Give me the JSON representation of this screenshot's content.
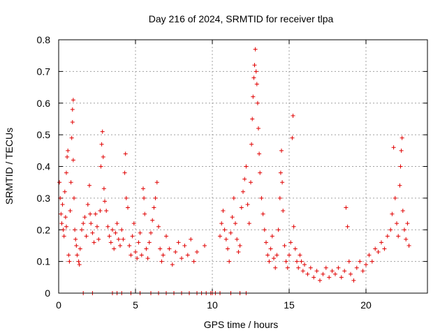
{
  "chart_data": {
    "type": "scatter",
    "title": "Day 216 of 2024, SRMTID for receiver tlpa",
    "xlabel": "GPS time / hours",
    "ylabel": "SRMTID / TECUs",
    "xlim": [
      0,
      24
    ],
    "ylim": [
      0,
      0.8
    ],
    "xticks": [
      0,
      5,
      10,
      15,
      20
    ],
    "yticks": [
      0,
      0.1,
      0.2,
      0.3,
      0.4,
      0.5,
      0.6,
      0.7,
      0.8
    ],
    "xtick_labels": [
      "0",
      "5",
      "10",
      "15",
      "20"
    ],
    "ytick_labels": [
      "0",
      "0.1",
      "0.2",
      "0.3",
      "0.4",
      "0.5",
      "0.6",
      "0.7",
      "0.8"
    ],
    "grid": true,
    "marker": "+",
    "color": "#e00000",
    "series": [
      {
        "name": "SRMTID",
        "points": [
          [
            0.05,
            0.35
          ],
          [
            0.1,
            0.3
          ],
          [
            0.15,
            0.25
          ],
          [
            0.2,
            0.22
          ],
          [
            0.25,
            0.28
          ],
          [
            0.3,
            0.2
          ],
          [
            0.35,
            0.18
          ],
          [
            0.4,
            0.32
          ],
          [
            0.45,
            0.24
          ],
          [
            0.5,
            0.21
          ],
          [
            0.5,
            0.38
          ],
          [
            0.55,
            0.43
          ],
          [
            0.6,
            0.45
          ],
          [
            0.65,
            0.12
          ],
          [
            0.7,
            0.1
          ],
          [
            0.75,
            0.26
          ],
          [
            0.8,
            0.35
          ],
          [
            0.85,
            0.49
          ],
          [
            0.9,
            0.58
          ],
          [
            0.95,
            0.61
          ],
          [
            0.9,
            0.54
          ],
          [
            0.95,
            0.42
          ],
          [
            1.0,
            0.3
          ],
          [
            1.05,
            0.2
          ],
          [
            1.1,
            0.17
          ],
          [
            1.15,
            0.15
          ],
          [
            1.2,
            0.12
          ],
          [
            1.3,
            0.1
          ],
          [
            1.35,
            0.09
          ],
          [
            1.4,
            0.14
          ],
          [
            1.5,
            0.2
          ],
          [
            1.6,
            0.22
          ],
          [
            1.7,
            0.24
          ],
          [
            1.8,
            0.18
          ],
          [
            1.9,
            0.28
          ],
          [
            2.0,
            0.34
          ],
          [
            2.05,
            0.25
          ],
          [
            2.1,
            0.22
          ],
          [
            2.2,
            0.19
          ],
          [
            2.3,
            0.16
          ],
          [
            2.4,
            0.25
          ],
          [
            2.5,
            0.21
          ],
          [
            2.6,
            0.17
          ],
          [
            2.7,
            0.26
          ],
          [
            2.75,
            0.4
          ],
          [
            2.8,
            0.47
          ],
          [
            2.85,
            0.51
          ],
          [
            2.9,
            0.43
          ],
          [
            2.95,
            0.33
          ],
          [
            3.0,
            0.29
          ],
          [
            3.1,
            0.26
          ],
          [
            3.2,
            0.21
          ],
          [
            3.3,
            0.18
          ],
          [
            3.4,
            0.16
          ],
          [
            3.5,
            0.2
          ],
          [
            3.6,
            0.14
          ],
          [
            3.7,
            0.19
          ],
          [
            3.8,
            0.22
          ],
          [
            3.9,
            0.17
          ],
          [
            4.0,
            0.15
          ],
          [
            4.1,
            0.2
          ],
          [
            4.2,
            0.17
          ],
          [
            4.3,
            0.38
          ],
          [
            4.35,
            0.44
          ],
          [
            4.4,
            0.3
          ],
          [
            4.5,
            0.27
          ],
          [
            4.6,
            0.15
          ],
          [
            4.7,
            0.12
          ],
          [
            4.8,
            0.18
          ],
          [
            4.9,
            0.22
          ],
          [
            5.0,
            0.13
          ],
          [
            5.1,
            0.11
          ],
          [
            5.2,
            0.16
          ],
          [
            5.3,
            0.19
          ],
          [
            5.4,
            0.12
          ],
          [
            5.5,
            0.33
          ],
          [
            5.55,
            0.3
          ],
          [
            5.6,
            0.25
          ],
          [
            5.7,
            0.14
          ],
          [
            5.8,
            0.11
          ],
          [
            5.9,
            0.16
          ],
          [
            6.0,
            0.19
          ],
          [
            6.1,
            0.23
          ],
          [
            6.2,
            0.27
          ],
          [
            6.3,
            0.3
          ],
          [
            6.4,
            0.35
          ],
          [
            6.5,
            0.21
          ],
          [
            6.6,
            0.14
          ],
          [
            6.7,
            0.1
          ],
          [
            6.8,
            0.12
          ],
          [
            7.0,
            0.18
          ],
          [
            7.2,
            0.14
          ],
          [
            7.4,
            0.09
          ],
          [
            7.6,
            0.13
          ],
          [
            7.8,
            0.16
          ],
          [
            8.0,
            0.11
          ],
          [
            8.2,
            0.15
          ],
          [
            8.4,
            0.12
          ],
          [
            8.6,
            0.17
          ],
          [
            8.8,
            0.1
          ],
          [
            9.0,
            0.13
          ],
          [
            9.5,
            0.15
          ],
          [
            10.0,
            0.0
          ],
          [
            10.5,
            0.18
          ],
          [
            10.6,
            0.22
          ],
          [
            10.7,
            0.26
          ],
          [
            10.8,
            0.2
          ],
          [
            10.9,
            0.17
          ],
          [
            11.0,
            0.14
          ],
          [
            11.1,
            0.1
          ],
          [
            11.2,
            0.19
          ],
          [
            11.3,
            0.24
          ],
          [
            11.4,
            0.3
          ],
          [
            11.5,
            0.22
          ],
          [
            11.6,
            0.17
          ],
          [
            11.7,
            0.13
          ],
          [
            11.8,
            0.15
          ],
          [
            11.9,
            0.27
          ],
          [
            12.0,
            0.32
          ],
          [
            12.1,
            0.36
          ],
          [
            12.2,
            0.4
          ],
          [
            12.3,
            0.28
          ],
          [
            12.4,
            0.22
          ],
          [
            12.5,
            0.35
          ],
          [
            12.55,
            0.47
          ],
          [
            12.6,
            0.55
          ],
          [
            12.65,
            0.62
          ],
          [
            12.7,
            0.68
          ],
          [
            12.75,
            0.72
          ],
          [
            12.8,
            0.77
          ],
          [
            12.85,
            0.7
          ],
          [
            12.9,
            0.66
          ],
          [
            12.95,
            0.6
          ],
          [
            13.0,
            0.52
          ],
          [
            13.05,
            0.44
          ],
          [
            13.1,
            0.38
          ],
          [
            13.2,
            0.3
          ],
          [
            13.3,
            0.25
          ],
          [
            13.4,
            0.2
          ],
          [
            13.5,
            0.16
          ],
          [
            13.6,
            0.12
          ],
          [
            13.7,
            0.1
          ],
          [
            13.8,
            0.14
          ],
          [
            13.9,
            0.18
          ],
          [
            14.0,
            0.11
          ],
          [
            14.1,
            0.08
          ],
          [
            14.2,
            0.12
          ],
          [
            14.3,
            0.2
          ],
          [
            14.4,
            0.3
          ],
          [
            14.45,
            0.38
          ],
          [
            14.5,
            0.45
          ],
          [
            14.55,
            0.35
          ],
          [
            14.6,
            0.26
          ],
          [
            14.7,
            0.15
          ],
          [
            14.8,
            0.1
          ],
          [
            14.9,
            0.08
          ],
          [
            15.0,
            0.12
          ],
          [
            15.1,
            0.16
          ],
          [
            15.2,
            0.49
          ],
          [
            15.25,
            0.56
          ],
          [
            15.3,
            0.21
          ],
          [
            15.4,
            0.14
          ],
          [
            15.5,
            0.1
          ],
          [
            15.6,
            0.08
          ],
          [
            15.7,
            0.12
          ],
          [
            15.8,
            0.1
          ],
          [
            15.9,
            0.07
          ],
          [
            16.0,
            0.09
          ],
          [
            16.2,
            0.06
          ],
          [
            16.4,
            0.08
          ],
          [
            16.6,
            0.05
          ],
          [
            16.8,
            0.07
          ],
          [
            17.0,
            0.04
          ],
          [
            17.2,
            0.06
          ],
          [
            17.4,
            0.08
          ],
          [
            17.6,
            0.05
          ],
          [
            17.8,
            0.07
          ],
          [
            18.0,
            0.06
          ],
          [
            18.2,
            0.08
          ],
          [
            18.4,
            0.05
          ],
          [
            18.6,
            0.07
          ],
          [
            18.7,
            0.27
          ],
          [
            18.8,
            0.21
          ],
          [
            18.9,
            0.1
          ],
          [
            19.0,
            0.06
          ],
          [
            19.2,
            0.04
          ],
          [
            19.4,
            0.08
          ],
          [
            19.6,
            0.1
          ],
          [
            19.8,
            0.07
          ],
          [
            20.0,
            0.09
          ],
          [
            20.2,
            0.12
          ],
          [
            20.4,
            0.1
          ],
          [
            20.6,
            0.14
          ],
          [
            20.8,
            0.13
          ],
          [
            21.0,
            0.16
          ],
          [
            21.2,
            0.14
          ],
          [
            21.4,
            0.18
          ],
          [
            21.6,
            0.2
          ],
          [
            21.7,
            0.25
          ],
          [
            21.8,
            0.46
          ],
          [
            21.9,
            0.3
          ],
          [
            22.0,
            0.22
          ],
          [
            22.1,
            0.18
          ],
          [
            22.2,
            0.34
          ],
          [
            22.25,
            0.4
          ],
          [
            22.3,
            0.45
          ],
          [
            22.35,
            0.49
          ],
          [
            22.4,
            0.26
          ],
          [
            22.5,
            0.2
          ],
          [
            22.6,
            0.17
          ],
          [
            22.7,
            0.22
          ],
          [
            22.8,
            0.15
          ],
          [
            1.6,
            0.0
          ],
          [
            2.2,
            0.0
          ],
          [
            3.5,
            0.0
          ],
          [
            3.8,
            0.0
          ],
          [
            4.1,
            0.0
          ],
          [
            4.7,
            0.0
          ],
          [
            5.3,
            0.0
          ],
          [
            6.0,
            0.0
          ],
          [
            6.5,
            0.0
          ],
          [
            7.0,
            0.0
          ],
          [
            7.5,
            0.0
          ],
          [
            8.0,
            0.0
          ],
          [
            8.5,
            0.0
          ],
          [
            9.0,
            0.0
          ],
          [
            9.3,
            0.0
          ],
          [
            9.6,
            0.0
          ],
          [
            9.9,
            0.0
          ],
          [
            10.2,
            0.0
          ],
          [
            10.5,
            0.0
          ],
          [
            11.2,
            0.0
          ],
          [
            11.8,
            0.0
          ],
          [
            12.2,
            0.0
          ]
        ]
      }
    ]
  }
}
